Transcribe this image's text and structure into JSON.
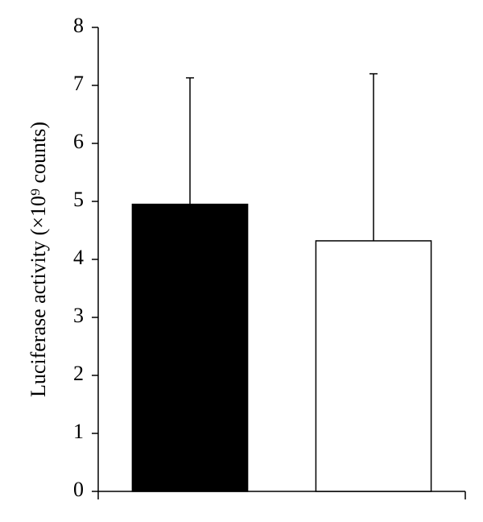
{
  "chart_data": {
    "type": "bar",
    "ylabel": "Luciferase activity (×10⁹ counts)",
    "categories": [
      null,
      null
    ],
    "values": [
      4.95,
      4.32
    ],
    "errors": [
      2.18,
      2.88
    ],
    "colors": [
      "#000000",
      "#ffffff"
    ],
    "ylim": [
      0,
      8
    ],
    "yticks": [
      0,
      1,
      2,
      3,
      4,
      5,
      6,
      7,
      8
    ],
    "grid": false
  }
}
